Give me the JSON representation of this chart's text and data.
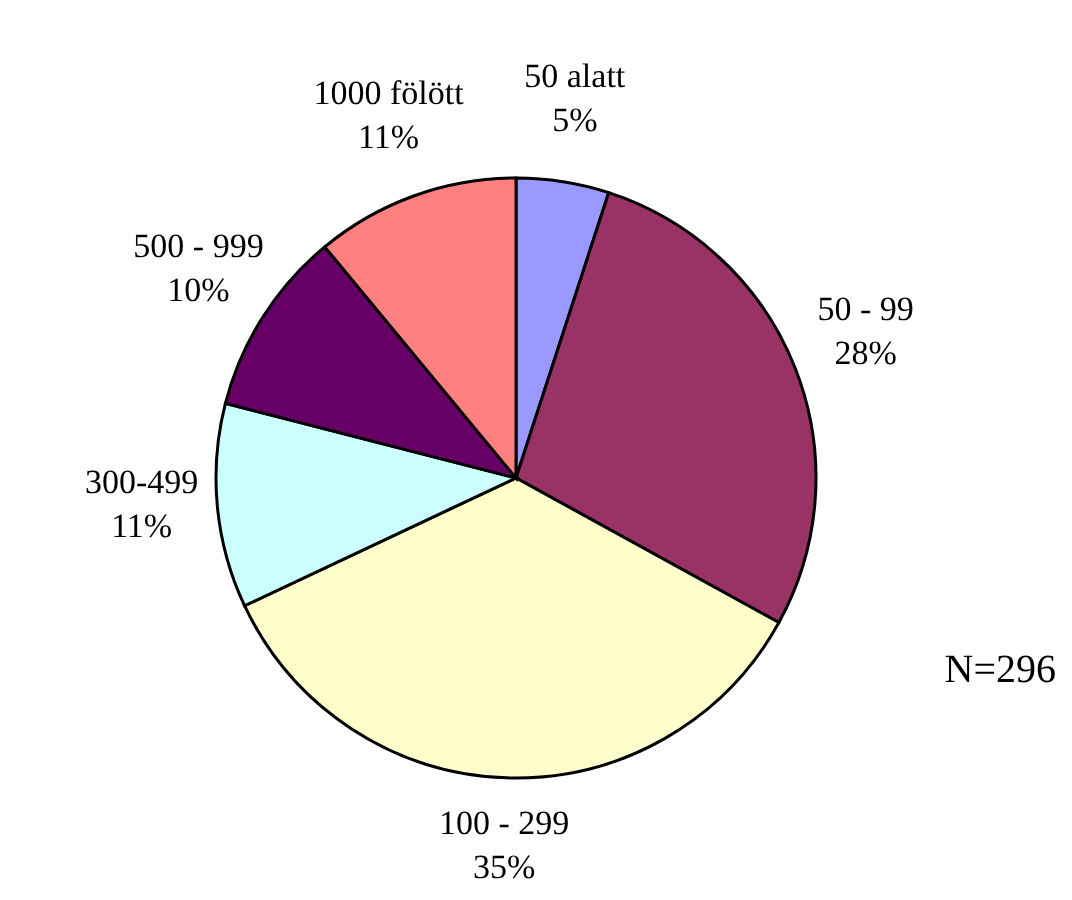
{
  "chart_data": {
    "type": "pie",
    "categories": [
      "50 alatt",
      "50 - 99",
      "100 - 299",
      "300-499",
      "500 - 999",
      "1000 fölött"
    ],
    "values": [
      5,
      28,
      35,
      11,
      10,
      11
    ],
    "colors": [
      "#9999ff",
      "#993366",
      "#ffffcc",
      "#ccffff",
      "#660066",
      "#ff8080"
    ],
    "value_labels": [
      "5%",
      "28%",
      "35%",
      "11%",
      "10%",
      "11%"
    ],
    "annotations": [
      "N=296"
    ]
  }
}
